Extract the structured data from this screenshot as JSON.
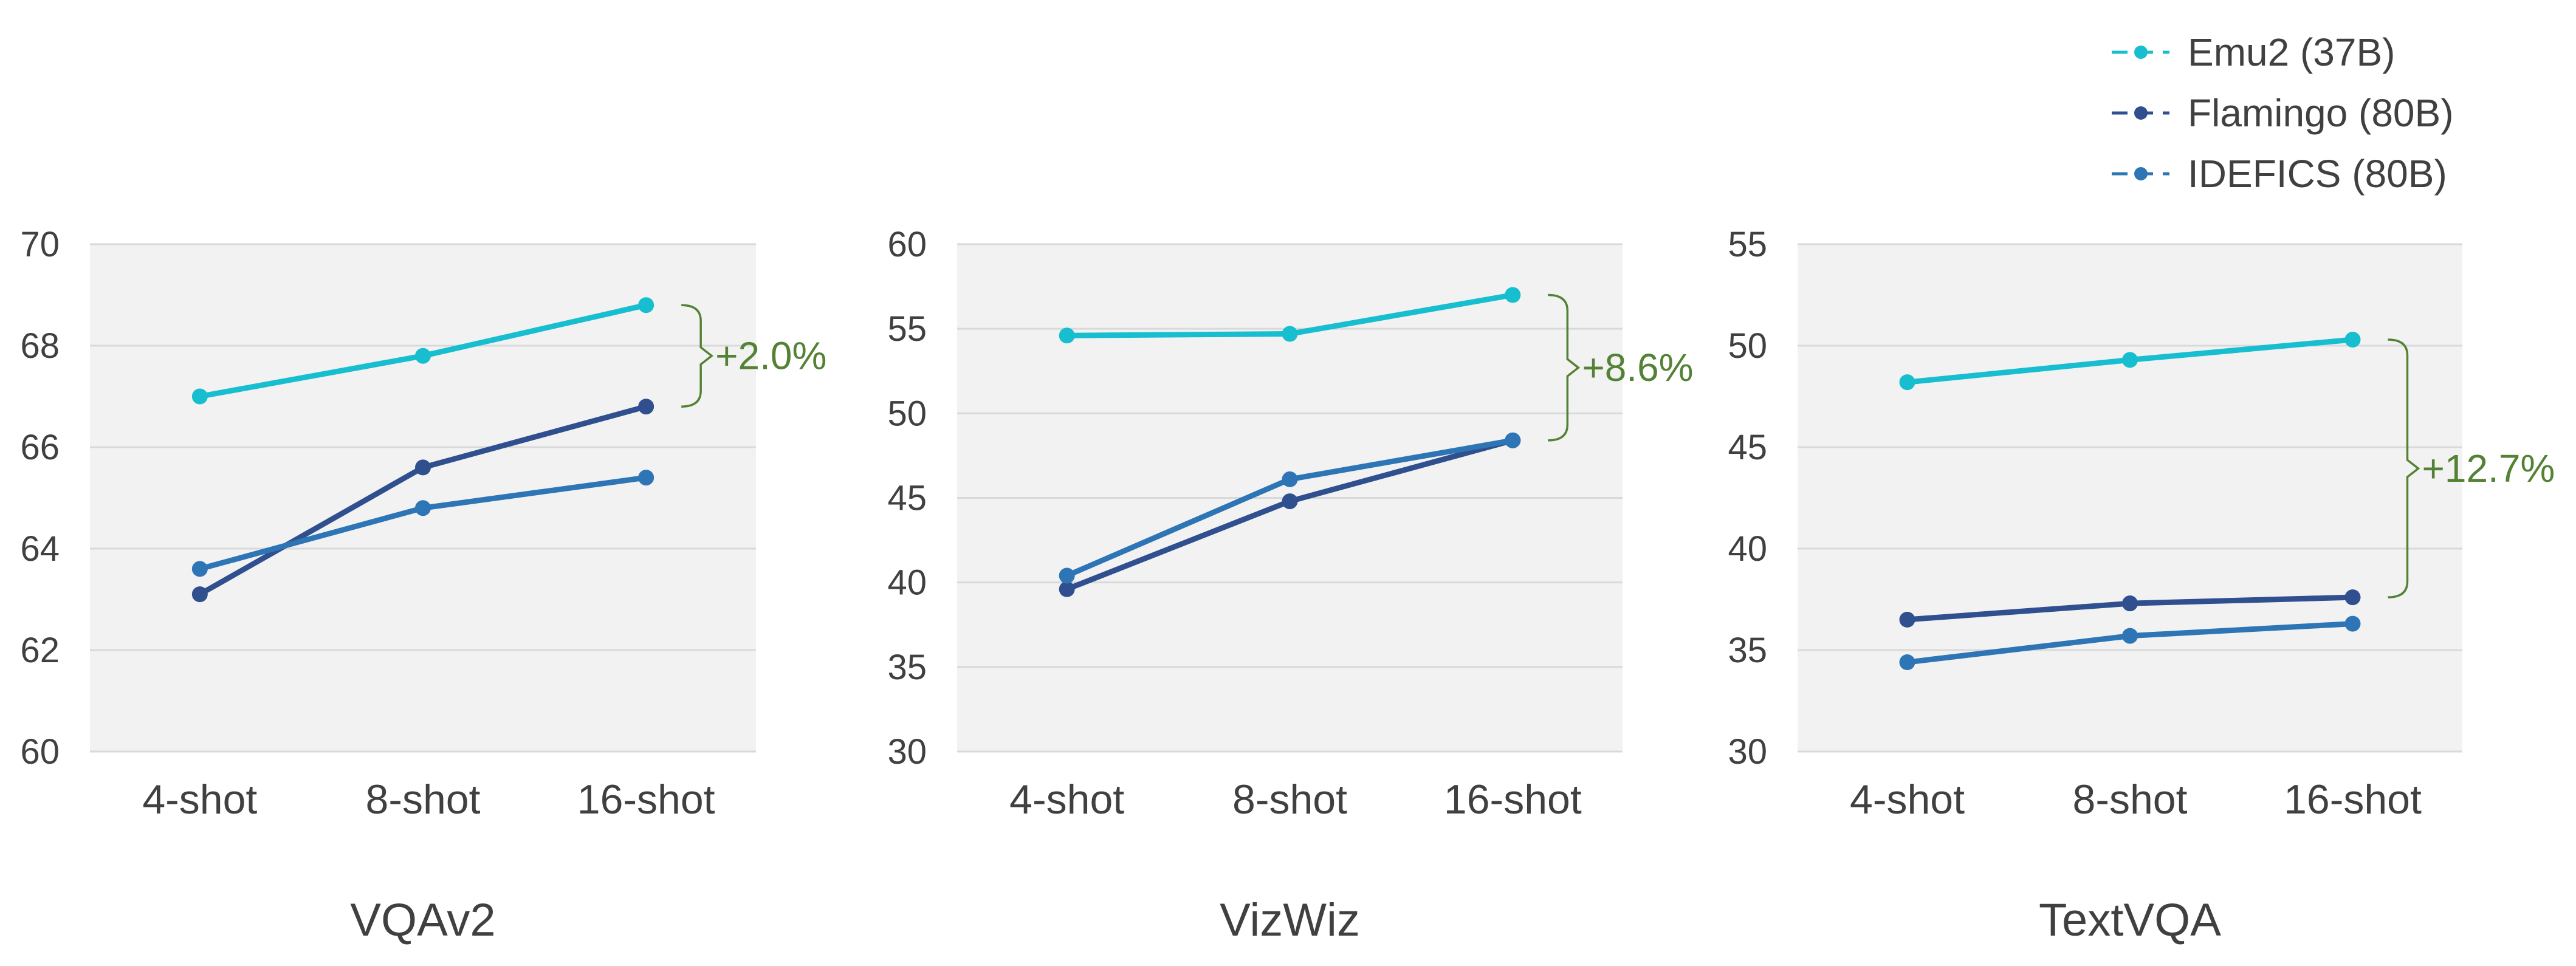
{
  "colors": {
    "Emu2 (37B)": "#17becf",
    "Flamingo (80B)": "#2f4f8f",
    "IDEFICS (80B)": "#2e75b6",
    "annotation": "#548235",
    "plot_bg": "#f2f2f2",
    "grid": "#d9d9d9",
    "text": "#404040"
  },
  "legend": {
    "placement": "top-right",
    "items": [
      {
        "label": "Emu2 (37B)",
        "color": "#17becf"
      },
      {
        "label": "Flamingo (80B)",
        "color": "#2f4f8f"
      },
      {
        "label": "IDEFICS (80B)",
        "color": "#2e75b6"
      }
    ]
  },
  "chart_data": [
    {
      "type": "line",
      "title": "VQAv2",
      "categories": [
        "4-shot",
        "8-shot",
        "16-shot"
      ],
      "ylim": [
        60,
        70
      ],
      "yticks": [
        60,
        62,
        64,
        66,
        68,
        70
      ],
      "grid": true,
      "series": [
        {
          "name": "Emu2 (37B)",
          "values": [
            67.0,
            67.8,
            68.8
          ]
        },
        {
          "name": "Flamingo (80B)",
          "values": [
            63.1,
            65.6,
            66.8
          ]
        },
        {
          "name": "IDEFICS (80B)",
          "values": [
            63.6,
            64.8,
            65.4
          ]
        }
      ],
      "annotation": {
        "text": "+2.0%",
        "from": 68.8,
        "to": 66.8
      }
    },
    {
      "type": "line",
      "title": "VizWiz",
      "categories": [
        "4-shot",
        "8-shot",
        "16-shot"
      ],
      "ylim": [
        30,
        60
      ],
      "yticks": [
        30,
        35,
        40,
        45,
        50,
        55,
        60
      ],
      "grid": true,
      "series": [
        {
          "name": "Emu2 (37B)",
          "values": [
            54.6,
            54.7,
            57.0
          ]
        },
        {
          "name": "Flamingo (80B)",
          "values": [
            39.6,
            44.8,
            48.4
          ]
        },
        {
          "name": "IDEFICS (80B)",
          "values": [
            40.4,
            46.1,
            48.4
          ]
        }
      ],
      "annotation": {
        "text": "+8.6%",
        "from": 57.0,
        "to": 48.4
      }
    },
    {
      "type": "line",
      "title": "TextVQA",
      "categories": [
        "4-shot",
        "8-shot",
        "16-shot"
      ],
      "ylim": [
        30,
        55
      ],
      "yticks": [
        30,
        35,
        40,
        45,
        50,
        55
      ],
      "grid": true,
      "series": [
        {
          "name": "Emu2 (37B)",
          "values": [
            48.2,
            49.3,
            50.3
          ]
        },
        {
          "name": "Flamingo (80B)",
          "values": [
            36.5,
            37.3,
            37.6
          ]
        },
        {
          "name": "IDEFICS (80B)",
          "values": [
            34.4,
            35.7,
            36.3
          ]
        }
      ],
      "annotation": {
        "text": "+12.7%",
        "from": 50.3,
        "to": 37.6
      }
    }
  ]
}
